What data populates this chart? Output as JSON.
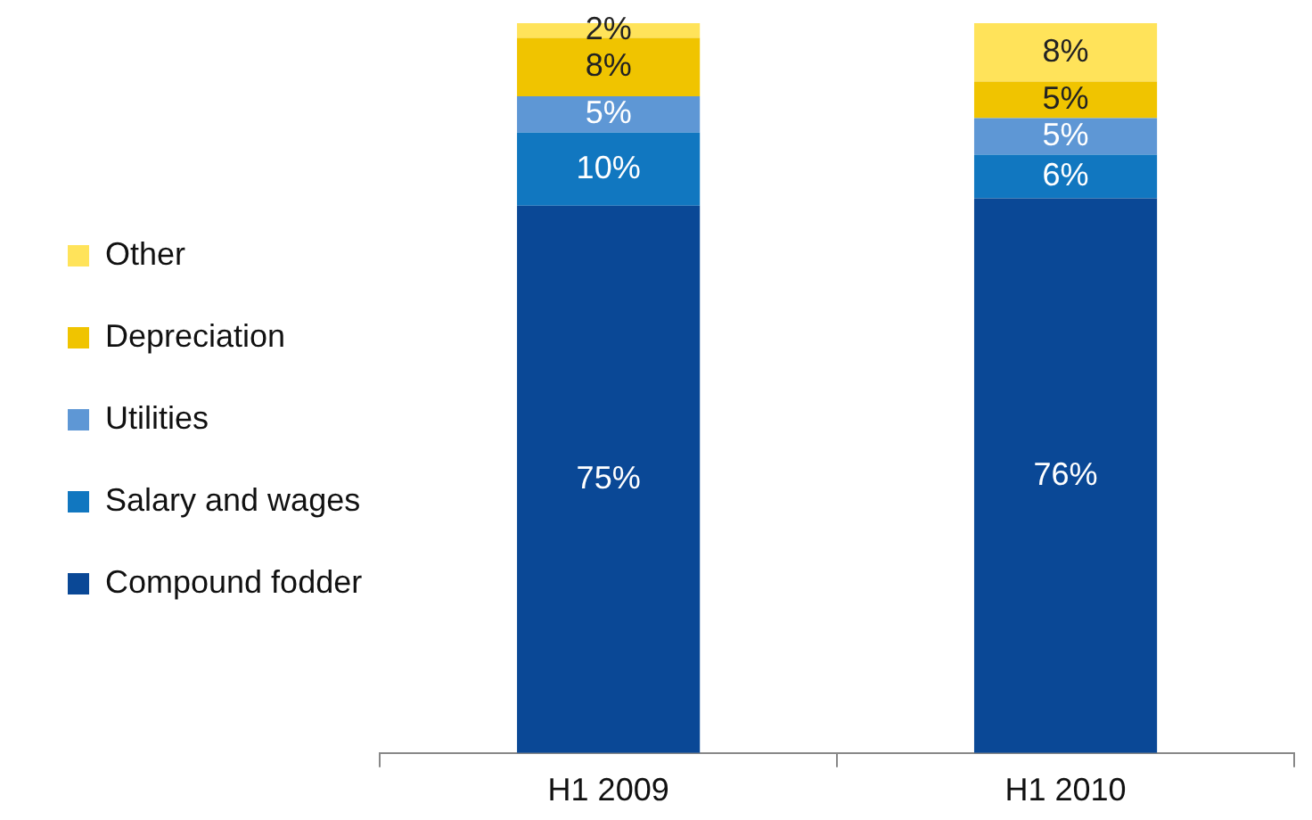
{
  "chart_data": {
    "type": "bar",
    "stacked": true,
    "categories": [
      "H1 2009",
      "H1 2010"
    ],
    "ylim": [
      0,
      100
    ],
    "tick_labels": "x",
    "legend": "left",
    "grid": false,
    "series": [
      {
        "name": "Compound fodder",
        "color": "#0a4896",
        "values": [
          75,
          76
        ],
        "value_labels": [
          "75%",
          "76%"
        ]
      },
      {
        "name": "Salary and wages",
        "color": "#1177c0",
        "values": [
          10,
          6
        ],
        "value_labels": [
          "10%",
          "6%"
        ]
      },
      {
        "name": "Utilities",
        "color": "#5e97d5",
        "values": [
          5,
          5
        ],
        "value_labels": [
          "5%",
          "5%"
        ]
      },
      {
        "name": "Depreciation",
        "color": "#f0c400",
        "values": [
          8,
          5
        ],
        "value_labels": [
          "8%",
          "5%"
        ]
      },
      {
        "name": "Other",
        "color": "#ffe35a",
        "values": [
          2,
          8
        ],
        "value_labels": [
          "2%",
          "8%"
        ]
      }
    ]
  }
}
